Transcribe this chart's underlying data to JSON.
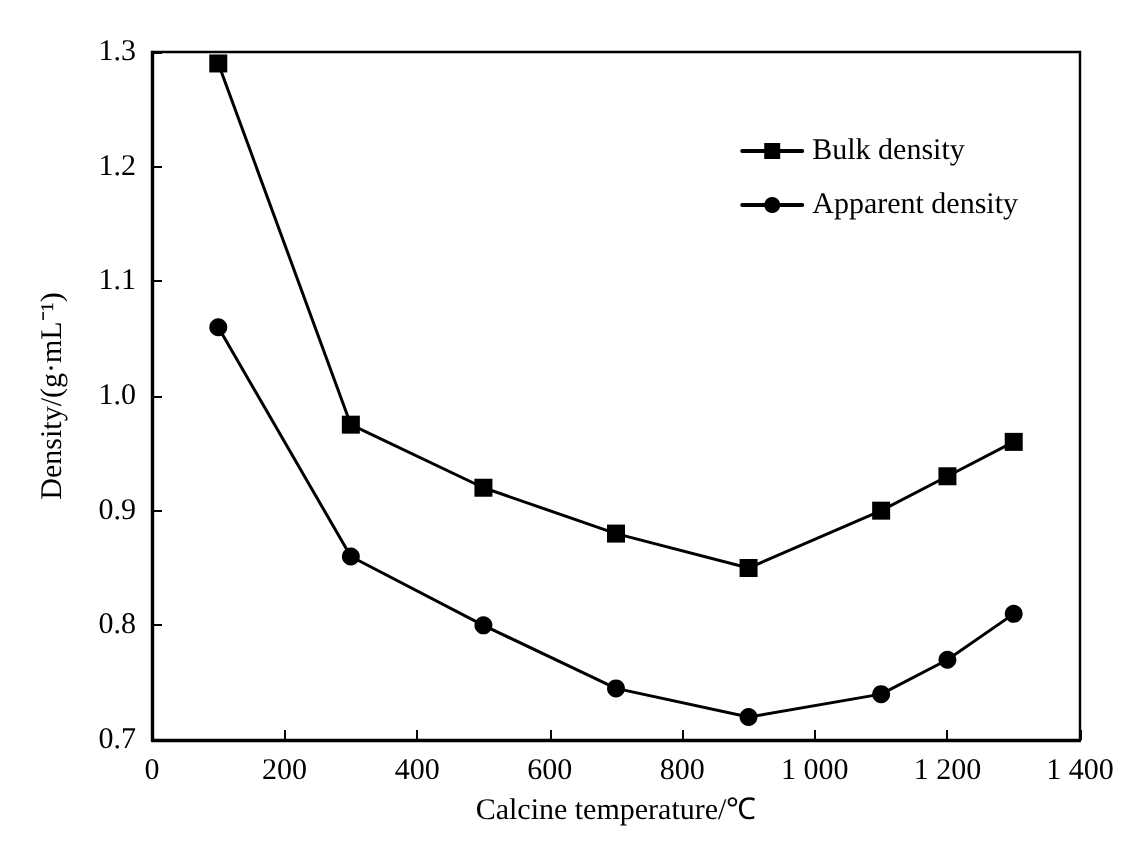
{
  "chart_data": {
    "type": "line",
    "xlabel": "Calcine temperature/℃",
    "ylabel": "Density/(g·mL⁻¹)",
    "x": [
      100,
      300,
      500,
      700,
      900,
      1100,
      1200,
      1300
    ],
    "series": [
      {
        "name": "Bulk density",
        "color": "#000000",
        "marker": "square",
        "values": [
          1.29,
          0.975,
          0.92,
          0.88,
          0.85,
          0.9,
          0.93,
          0.96
        ]
      },
      {
        "name": "Apparent density",
        "color": "#000000",
        "marker": "circle",
        "values": [
          1.06,
          0.86,
          0.8,
          0.745,
          0.72,
          0.74,
          0.77,
          0.81
        ]
      }
    ],
    "xlim": [
      0,
      1400
    ],
    "xticks": [
      0,
      200,
      400,
      600,
      800,
      {
        "value": 1000,
        "label": "1 000"
      },
      {
        "value": 1200,
        "label": "1 200"
      },
      {
        "value": 1400,
        "label": "1 400"
      }
    ],
    "ylim": [
      0.7,
      1.3
    ],
    "yticks": [
      {
        "value": 0.7,
        "label": "0.7"
      },
      {
        "value": 0.8,
        "label": "0.8"
      },
      {
        "value": 0.9,
        "label": "0.9"
      },
      {
        "value": 1.0,
        "label": "1.0"
      },
      {
        "value": 1.1,
        "label": "1.1"
      },
      {
        "value": 1.2,
        "label": "1.2"
      },
      {
        "value": 1.3,
        "label": "1.3"
      }
    ],
    "grid": false,
    "legend": "top right",
    "line_style": "solid"
  }
}
